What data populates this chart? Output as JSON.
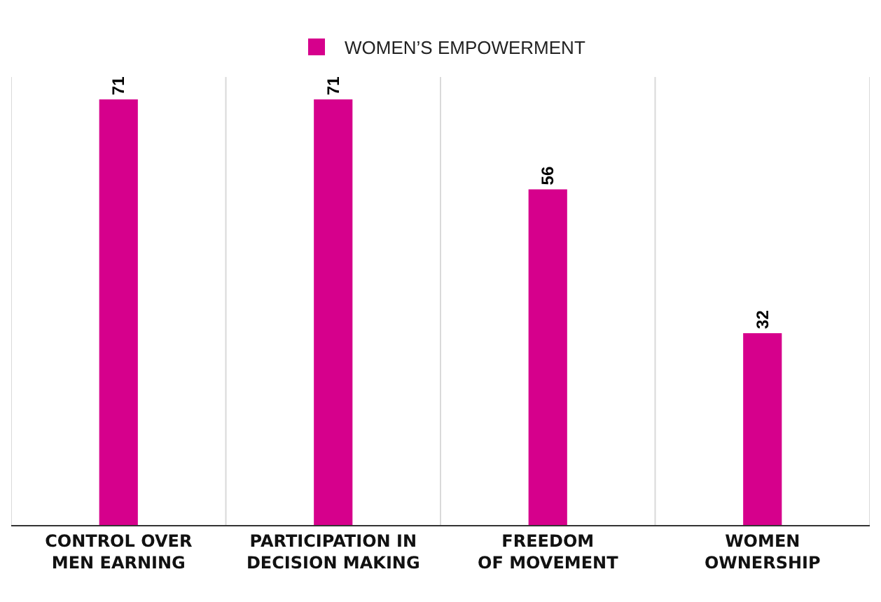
{
  "chart_data": {
    "type": "bar",
    "categories": [
      "CONTROL OVER MEN EARNING",
      "PARTICIPATION IN DECISION MAKING",
      "FREEDOM OF MOVEMENT",
      "WOMEN OWNERSHIP"
    ],
    "series": [
      {
        "name": "WOMEN’S EMPOWERMENT",
        "color": "#d6008c",
        "values": [
          71,
          71,
          56,
          32
        ]
      }
    ],
    "data_labels": true,
    "grid": "x",
    "legend": "top",
    "tick_labels": "x"
  }
}
